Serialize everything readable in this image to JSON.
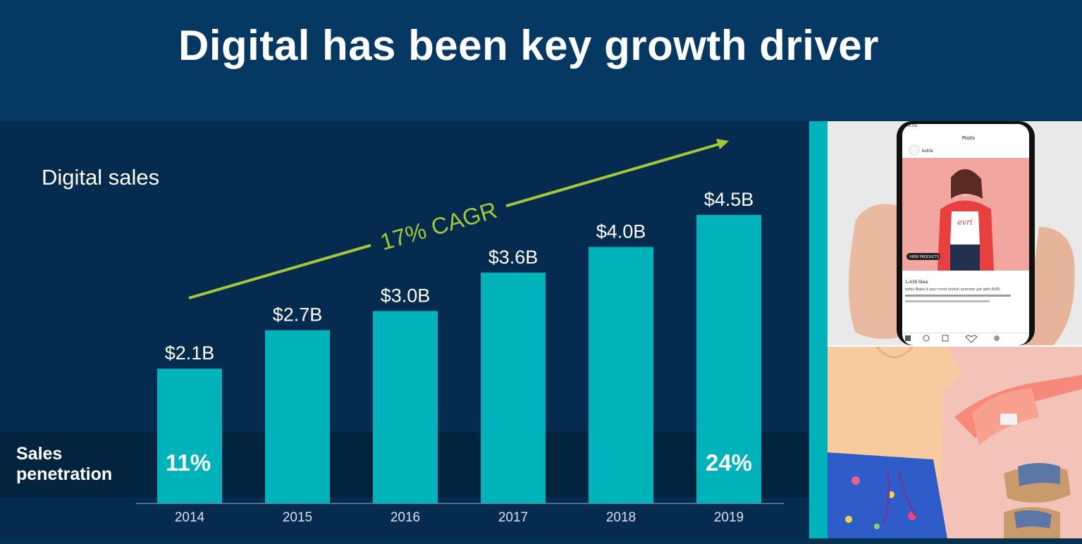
{
  "slide": {
    "title": "Digital has been key growth driver",
    "series_label": "Digital sales",
    "penetration_label_line1": "Sales",
    "penetration_label_line2": "penetration"
  },
  "colors": {
    "background": "#053863",
    "panel": "#052b4e",
    "bar": "#00b2b9",
    "arrow": "#a2c73b",
    "text": "#ffffff"
  },
  "chart_data": {
    "type": "bar",
    "title": "Digital sales",
    "categories": [
      "2014",
      "2015",
      "2016",
      "2017",
      "2018",
      "2019"
    ],
    "values": [
      2.1,
      2.7,
      3.0,
      3.6,
      4.0,
      4.5
    ],
    "value_labels": [
      "$2.1B",
      "$2.7B",
      "$3.0B",
      "$3.6B",
      "$4.0B",
      "$4.5B"
    ],
    "ylabel": "",
    "xlabel": "",
    "ylim": [
      0,
      4.5
    ],
    "grid": false,
    "penetration": [
      {
        "category": "2014",
        "label": "11%"
      },
      {
        "category": "2019",
        "label": "24%"
      }
    ],
    "annotation": "17% CAGR"
  },
  "photos": {
    "phone_header": "Posts",
    "phone_account": "kohls",
    "phone_likes": "1,439 likes",
    "phone_caption": "kohls Make it your most stylish summer yet with EVRI.",
    "phone_button": "VIEW PRODUCTS",
    "phone_time": "3:05",
    "shirt_text": "evri"
  }
}
